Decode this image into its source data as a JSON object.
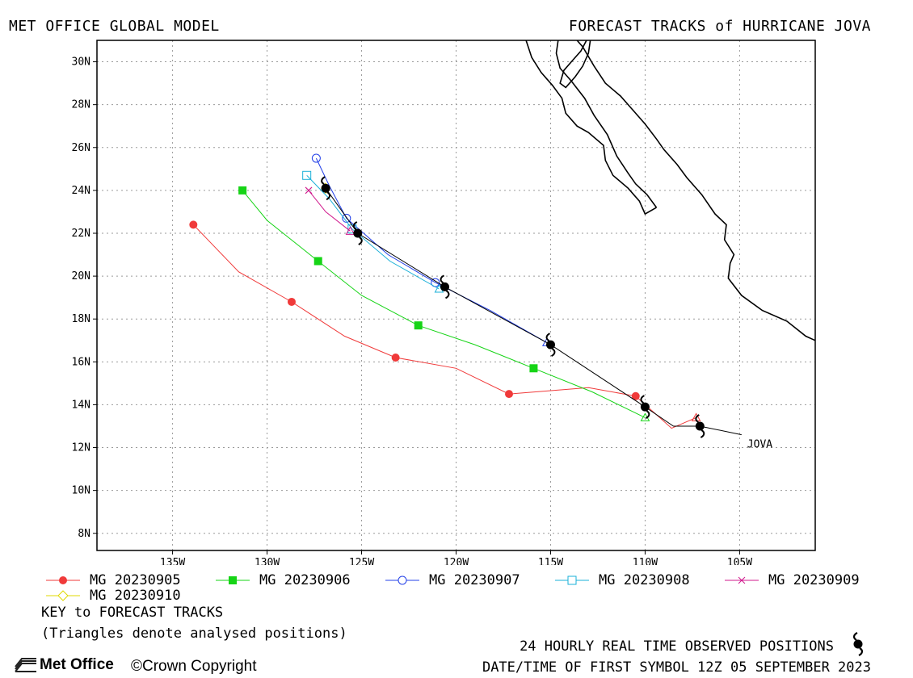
{
  "header": {
    "left_title": "MET OFFICE GLOBAL MODEL",
    "right_title": "FORECAST TRACKS of HURRICANE JOVA"
  },
  "colors": {
    "mg20230905": "#f03a3a",
    "mg20230906": "#16d416",
    "mg20230907": "#2340e8",
    "mg20230908": "#1ab0d8",
    "mg20230909": "#d0188c",
    "mg20230910": "#e0d800",
    "observed": "#000000",
    "grid": "#9a9a9a"
  },
  "chart_data": {
    "type": "map-tracks",
    "xlim": [
      -139,
      -101
    ],
    "ylim": [
      7.2,
      31
    ],
    "grid": true,
    "x_ticks": [
      -135,
      -130,
      -125,
      -120,
      -115,
      -110,
      -105
    ],
    "x_tick_labels": [
      "135W",
      "130W",
      "125W",
      "120W",
      "115W",
      "110W",
      "105W"
    ],
    "y_ticks": [
      8,
      10,
      12,
      14,
      16,
      18,
      20,
      22,
      24,
      26,
      28,
      30
    ],
    "y_tick_labels": [
      "8N",
      "10N",
      "12N",
      "14N",
      "16N",
      "18N",
      "20N",
      "22N",
      "24N",
      "26N",
      "28N",
      "30N"
    ],
    "storm_label": "JOVA",
    "storm_label_pos": [
      -104.6,
      12.0
    ],
    "observed_track": {
      "line": [
        [
          -104.9,
          12.6
        ],
        [
          -107.1,
          13.0
        ],
        [
          -108.5,
          13.0
        ],
        [
          -110.0,
          13.9
        ],
        [
          -115.0,
          16.8
        ],
        [
          -120.6,
          19.5
        ],
        [
          -125.2,
          22.0
        ],
        [
          -126.9,
          24.1
        ]
      ],
      "symbols": [
        [
          -107.1,
          13.0
        ],
        [
          -110.0,
          13.9
        ],
        [
          -115.0,
          16.8
        ],
        [
          -120.6,
          19.5
        ],
        [
          -125.2,
          22.0
        ],
        [
          -126.9,
          24.1
        ]
      ]
    },
    "series": [
      {
        "name": "MG 20230905",
        "color_key": "mg20230905",
        "marker": "filled-circle",
        "points": [
          [
            -107.3,
            13.4
          ],
          [
            -108.6,
            12.9
          ],
          [
            -110.5,
            14.4
          ],
          [
            -113.0,
            14.8
          ],
          [
            -117.2,
            14.5
          ],
          [
            -120.0,
            15.7
          ],
          [
            -123.2,
            16.2
          ],
          [
            -125.9,
            17.2
          ],
          [
            -128.7,
            18.8
          ],
          [
            -131.5,
            20.2
          ],
          [
            -133.9,
            22.4
          ]
        ],
        "marker_points": [
          [
            -110.5,
            14.4
          ],
          [
            -117.2,
            14.5
          ],
          [
            -123.2,
            16.2
          ],
          [
            -128.7,
            18.8
          ],
          [
            -133.9,
            22.4
          ]
        ]
      },
      {
        "name": "MG 20230906",
        "color_key": "mg20230906",
        "marker": "filled-square",
        "points": [
          [
            -110.0,
            13.4
          ],
          [
            -112.8,
            14.6
          ],
          [
            -115.9,
            15.7
          ],
          [
            -119.0,
            16.8
          ],
          [
            -122.0,
            17.7
          ],
          [
            -125.0,
            19.1
          ],
          [
            -127.3,
            20.7
          ],
          [
            -130.0,
            22.6
          ],
          [
            -131.3,
            24.0
          ]
        ],
        "marker_points": [
          [
            -115.9,
            15.7
          ],
          [
            -122.0,
            17.7
          ],
          [
            -127.3,
            20.7
          ],
          [
            -131.3,
            24.0
          ]
        ]
      },
      {
        "name": "MG 20230907",
        "color_key": "mg20230907",
        "marker": "open-circle",
        "points": [
          [
            -115.2,
            16.9
          ],
          [
            -118.2,
            18.4
          ],
          [
            -121.1,
            19.7
          ],
          [
            -123.6,
            21.0
          ],
          [
            -125.8,
            22.7
          ],
          [
            -126.7,
            24.2
          ],
          [
            -127.4,
            25.5
          ]
        ],
        "marker_points": [
          [
            -121.1,
            19.7
          ],
          [
            -125.8,
            22.7
          ],
          [
            -127.4,
            25.5
          ]
        ]
      },
      {
        "name": "MG 20230908",
        "color_key": "mg20230908",
        "marker": "open-square",
        "points": [
          [
            -120.9,
            19.4
          ],
          [
            -123.5,
            20.7
          ],
          [
            -125.5,
            22.2
          ],
          [
            -126.7,
            23.6
          ],
          [
            -127.9,
            24.7
          ]
        ],
        "marker_points": [
          [
            -125.5,
            22.2
          ],
          [
            -127.9,
            24.7
          ]
        ]
      },
      {
        "name": "MG 20230909",
        "color_key": "mg20230909",
        "marker": "cross",
        "points": [
          [
            -125.6,
            22.1
          ],
          [
            -126.9,
            23.0
          ],
          [
            -127.8,
            24.0
          ]
        ],
        "marker_points": [
          [
            -127.8,
            24.0
          ]
        ]
      },
      {
        "name": "MG 20230910",
        "color_key": "mg20230910",
        "marker": "open-diamond",
        "points": [
          [
            -126.9,
            24.1
          ]
        ],
        "marker_points": [
          [
            -126.9,
            24.1
          ]
        ]
      }
    ],
    "coastlines": [
      [
        [
          -101,
          17.0
        ],
        [
          -101.5,
          17.2
        ],
        [
          -102.5,
          17.9
        ],
        [
          -103.8,
          18.4
        ],
        [
          -104.9,
          19.1
        ],
        [
          -105.6,
          19.9
        ],
        [
          -105.5,
          20.6
        ],
        [
          -105.3,
          21.0
        ],
        [
          -105.8,
          21.7
        ],
        [
          -105.7,
          22.4
        ],
        [
          -106.3,
          22.9
        ],
        [
          -107.0,
          23.8
        ],
        [
          -107.8,
          24.6
        ],
        [
          -108.3,
          25.2
        ],
        [
          -109.0,
          25.9
        ],
        [
          -109.4,
          26.4
        ],
        [
          -110.0,
          27.1
        ],
        [
          -110.6,
          27.7
        ],
        [
          -111.3,
          28.4
        ],
        [
          -112.1,
          29.0
        ],
        [
          -112.7,
          29.8
        ],
        [
          -113.3,
          30.7
        ],
        [
          -113.6,
          31.0
        ]
      ],
      [
        [
          -109.4,
          23.2
        ],
        [
          -110.0,
          22.9
        ],
        [
          -110.3,
          23.5
        ],
        [
          -110.9,
          24.1
        ],
        [
          -111.7,
          24.7
        ],
        [
          -112.1,
          25.4
        ],
        [
          -112.2,
          26.1
        ],
        [
          -113.0,
          26.7
        ],
        [
          -113.6,
          27.0
        ],
        [
          -114.2,
          27.6
        ],
        [
          -114.4,
          28.3
        ],
        [
          -114.9,
          28.9
        ],
        [
          -115.5,
          29.5
        ],
        [
          -116.0,
          30.2
        ],
        [
          -116.3,
          31.0
        ]
      ],
      [
        [
          -109.4,
          23.2
        ],
        [
          -109.9,
          23.8
        ],
        [
          -110.5,
          24.3
        ],
        [
          -110.9,
          24.8
        ],
        [
          -111.5,
          25.6
        ],
        [
          -112.0,
          26.6
        ],
        [
          -112.7,
          27.5
        ],
        [
          -113.2,
          28.3
        ],
        [
          -113.9,
          29.1
        ],
        [
          -114.5,
          29.7
        ],
        [
          -114.7,
          30.4
        ],
        [
          -114.6,
          31.0
        ]
      ],
      [
        [
          -113.1,
          31.0
        ],
        [
          -113.4,
          30.5
        ],
        [
          -113.8,
          30.1
        ],
        [
          -114.3,
          29.6
        ],
        [
          -114.5,
          29.0
        ],
        [
          -114.2,
          28.8
        ],
        [
          -113.7,
          29.3
        ],
        [
          -113.3,
          29.8
        ],
        [
          -113.0,
          30.4
        ],
        [
          -112.9,
          31.0
        ]
      ]
    ]
  },
  "legend": {
    "items": [
      "MG 20230905",
      "MG 20230906",
      "MG 20230907",
      "MG 20230908",
      "MG 20230909",
      "MG 20230910"
    ],
    "key_title": "KEY to FORECAST TRACKS",
    "key_note": "(Triangles denote analysed positions)"
  },
  "footer": {
    "observed_text": "24 HOURLY REAL TIME OBSERVED POSITIONS",
    "datetime_text": "DATE/TIME OF FIRST SYMBOL 12Z 05 SEPTEMBER 2023",
    "logo_text": "Met Office",
    "copyright_text": "Crown Copyright"
  }
}
